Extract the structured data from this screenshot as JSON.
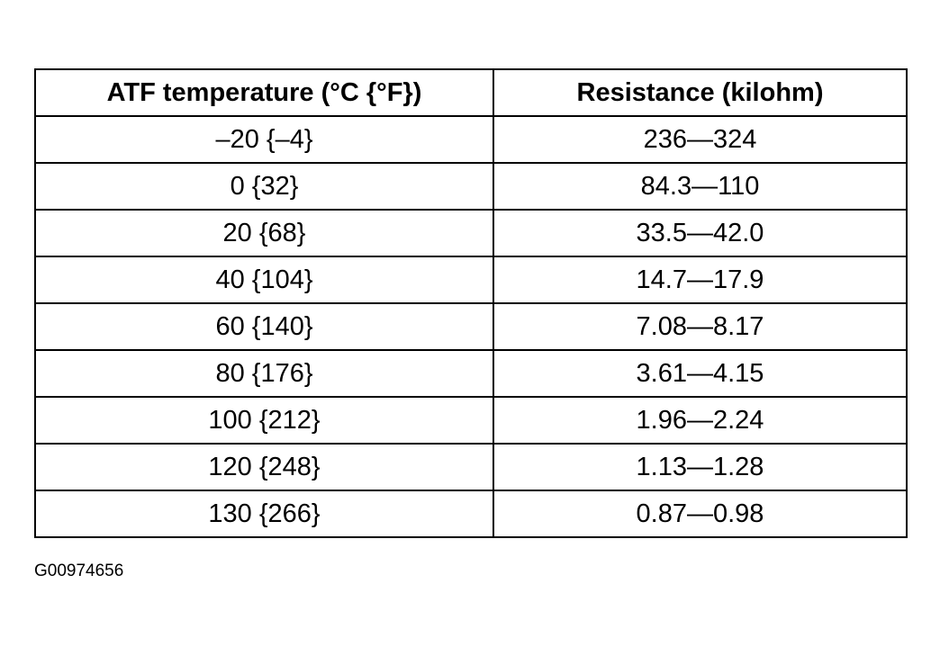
{
  "table": {
    "header": [
      "ATF temperature (°C {°F})",
      "Resistance (kilohm)"
    ],
    "rows": [
      [
        "–20 {–4}",
        "236—324"
      ],
      [
        "0 {32}",
        "84.3—110"
      ],
      [
        "20 {68}",
        "33.5—42.0"
      ],
      [
        "40 {104}",
        "14.7—17.9"
      ],
      [
        "60 {140}",
        "7.08—8.17"
      ],
      [
        "80 {176}",
        "3.61—4.15"
      ],
      [
        "100 {212}",
        "1.96—2.24"
      ],
      [
        "120 {248}",
        "1.13—1.28"
      ],
      [
        "130 {266}",
        "0.87—0.98"
      ]
    ]
  },
  "figure_id": "G00974656"
}
